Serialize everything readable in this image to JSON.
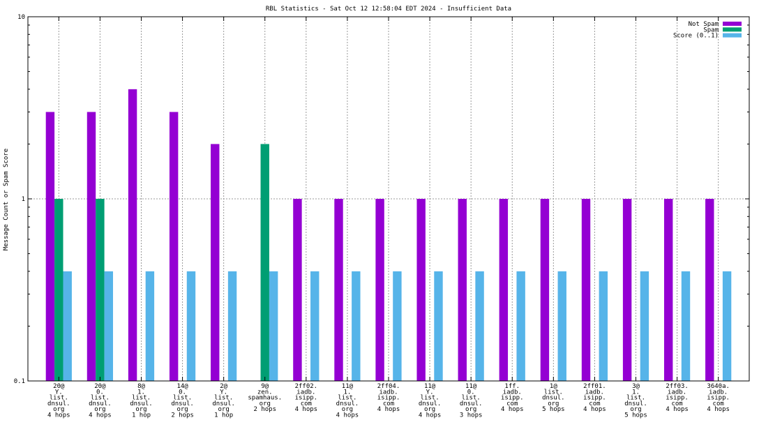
{
  "chart_data": {
    "type": "bar",
    "title": "RBL Statistics - Sat Oct 12 12:58:04 EDT 2024 - Insufficient Data",
    "xlabel": "",
    "ylabel": "Message Count or Spam Score",
    "yscale": "log",
    "ylim": [
      0.1,
      10
    ],
    "yticks": [
      "0.1",
      "1",
      "10"
    ],
    "grid": true,
    "legend_position": "top-right",
    "categories": [
      [
        "20@",
        "Y.",
        "list.",
        "dnsul.",
        "org",
        "4 hops"
      ],
      [
        "20@",
        "0.",
        "list.",
        "dnsul.",
        "org",
        "4 hops"
      ],
      [
        "8@",
        "1.",
        "list.",
        "dnsul.",
        "org",
        "1 hop"
      ],
      [
        "14@",
        "0.",
        "list.",
        "dnsul.",
        "org",
        "2 hops"
      ],
      [
        "2@",
        "Y.",
        "list.",
        "dnsul.",
        "org",
        "1 hop"
      ],
      [
        "9@",
        "zen.",
        "spamhaus.",
        "org",
        "2 hops"
      ],
      [
        "2ff02.",
        "iadb.",
        "isipp.",
        "com",
        "4 hops"
      ],
      [
        "11@",
        "1.",
        "list.",
        "dnsul.",
        "org",
        "4 hops"
      ],
      [
        "2ff04.",
        "iadb.",
        "isipp.",
        "com",
        "4 hops"
      ],
      [
        "11@",
        "Y.",
        "list.",
        "dnsul.",
        "org",
        "4 hops"
      ],
      [
        "11@",
        "0.",
        "list.",
        "dnsul.",
        "org",
        "3 hops"
      ],
      [
        "1ff.",
        "iadb.",
        "isipp.",
        "com",
        "4 hops"
      ],
      [
        "1@",
        "list.",
        "dnsul.",
        "org",
        "5 hops"
      ],
      [
        "2ff01.",
        "iadb.",
        "isipp.",
        "com",
        "4 hops"
      ],
      [
        "3@",
        "1.",
        "list.",
        "dnsul.",
        "org",
        "5 hops"
      ],
      [
        "2ff03.",
        "iadb.",
        "isipp.",
        "com",
        "4 hops"
      ],
      [
        "3640a.",
        "iadb.",
        "isipp.",
        "com",
        "4 hops"
      ]
    ],
    "series": [
      {
        "name": "Not Spam",
        "color": "#9400d3",
        "values": [
          3,
          3,
          4,
          3,
          2,
          null,
          1,
          1,
          1,
          1,
          1,
          1,
          1,
          1,
          1,
          1,
          1
        ]
      },
      {
        "name": "Spam",
        "color": "#009e73",
        "values": [
          1,
          1,
          null,
          null,
          null,
          2,
          null,
          null,
          null,
          null,
          null,
          null,
          null,
          null,
          null,
          null,
          null
        ]
      },
      {
        "name": "Score (0..1)",
        "color": "#56b4e9",
        "values": [
          0.4,
          0.4,
          0.4,
          0.4,
          0.4,
          0.4,
          0.4,
          0.4,
          0.4,
          0.4,
          0.4,
          0.4,
          0.4,
          0.4,
          0.4,
          0.4,
          0.4
        ]
      }
    ]
  }
}
